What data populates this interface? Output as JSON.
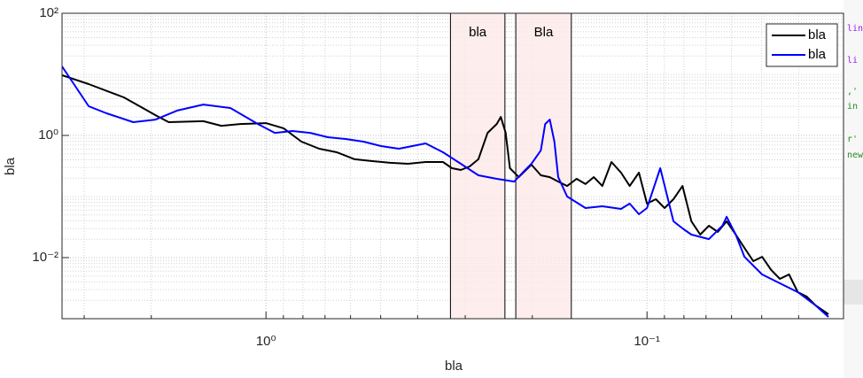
{
  "chart_data": {
    "type": "line",
    "xlabel": "bla",
    "ylabel": "bla",
    "xscale": "log",
    "yscale": "log",
    "grid": true,
    "legend": "upper right",
    "xlim": [
      3.43,
      0.0305
    ],
    "ylim": [
      0.001,
      100
    ],
    "xticks": [
      {
        "value": 1,
        "label": "10⁰"
      },
      {
        "value": 0.1,
        "label": "10⁻¹"
      }
    ],
    "yticks": [
      {
        "value": 0.01,
        "label": "10⁻²"
      },
      {
        "value": 1,
        "label": "10⁰"
      },
      {
        "value": 100,
        "label": "10²"
      }
    ],
    "xminorticks": [
      3,
      2,
      0.9,
      0.8,
      0.7,
      0.6,
      0.5,
      0.4,
      0.3,
      0.2,
      0.09,
      0.08,
      0.07,
      0.06,
      0.05,
      0.04
    ],
    "yminorticks": [
      0.002,
      0.003,
      0.004,
      0.005,
      0.006,
      0.007,
      0.008,
      0.009,
      0.02,
      0.03,
      0.04,
      0.05,
      0.06,
      0.07,
      0.08,
      0.09,
      0.1,
      0.2,
      0.3,
      0.4,
      0.5,
      0.6,
      0.7,
      0.8,
      0.9,
      2,
      3,
      4,
      5,
      6,
      7,
      8,
      9,
      10,
      20,
      30,
      40,
      50,
      60,
      70,
      80,
      90
    ],
    "regions": [
      {
        "label": "bla",
        "x": [
          0.328,
          0.236
        ],
        "color": "#fde9e9"
      },
      {
        "label": "Bla",
        "x": [
          0.221,
          0.158
        ],
        "color": "#fde9e9"
      }
    ],
    "series": [
      {
        "name": "bla",
        "color": "#000000",
        "x": [
          3.43,
          2.92,
          2.36,
          1.95,
          1.8,
          1.46,
          1.31,
          1.17,
          1,
          0.899,
          0.807,
          0.725,
          0.652,
          0.585,
          0.526,
          0.472,
          0.424,
          0.381,
          0.343,
          0.325,
          0.308,
          0.292,
          0.277,
          0.262,
          0.248,
          0.242,
          0.235,
          0.229,
          0.217,
          0.201,
          0.19,
          0.18,
          0.171,
          0.162,
          0.153,
          0.145,
          0.138,
          0.131,
          0.124,
          0.117,
          0.111,
          0.105,
          0.1,
          0.0948,
          0.0899,
          0.0852,
          0.0807,
          0.0765,
          0.0725,
          0.0688,
          0.0652,
          0.0618,
          0.0585,
          0.0555,
          0.0526,
          0.0499,
          0.0472,
          0.0448,
          0.0424,
          0.0402,
          0.0381,
          0.0361,
          0.0334
        ],
        "values": [
          9.68,
          6.93,
          4.2,
          2.15,
          1.65,
          1.71,
          1.44,
          1.54,
          1.59,
          1.31,
          0.792,
          0.607,
          0.531,
          0.407,
          0.38,
          0.356,
          0.344,
          0.367,
          0.367,
          0.291,
          0.272,
          0.311,
          0.407,
          1.1,
          1.54,
          2.01,
          1.1,
          0.291,
          0.208,
          0.332,
          0.223,
          0.208,
          0.176,
          0.149,
          0.195,
          0.16,
          0.208,
          0.149,
          0.367,
          0.246,
          0.149,
          0.246,
          0.0766,
          0.0905,
          0.0649,
          0.0905,
          0.149,
          0.0393,
          0.0238,
          0.0333,
          0.0263,
          0.0393,
          0.0238,
          0.0144,
          0.00875,
          0.0103,
          0.00626,
          0.00449,
          0.00531,
          0.00272,
          0.0023,
          0.00165,
          0.00118
        ]
      },
      {
        "name": "bla",
        "color": "#0000ff",
        "x": [
          3.43,
          2.92,
          2.62,
          2.23,
          1.95,
          1.71,
          1.46,
          1.24,
          1.05,
          0.948,
          0.852,
          0.765,
          0.688,
          0.618,
          0.555,
          0.499,
          0.448,
          0.381,
          0.343,
          0.308,
          0.277,
          0.248,
          0.223,
          0.212,
          0.201,
          0.19,
          0.185,
          0.18,
          0.175,
          0.171,
          0.162,
          0.145,
          0.131,
          0.117,
          0.111,
          0.105,
          0.1,
          0.0923,
          0.0852,
          0.0807,
          0.0765,
          0.0688,
          0.0634,
          0.0618,
          0.0585,
          0.0555,
          0.0499,
          0.0448,
          0.0402,
          0.0361,
          0.0334
        ],
        "values": [
          13.5,
          3.01,
          2.3,
          1.65,
          1.82,
          2.55,
          3.21,
          2.81,
          1.54,
          1.1,
          1.18,
          1.1,
          0.935,
          0.875,
          0.792,
          0.67,
          0.607,
          0.741,
          0.531,
          0.344,
          0.223,
          0.195,
          0.176,
          0.246,
          0.344,
          0.568,
          1.54,
          1.82,
          0.792,
          0.208,
          0.1,
          0.0649,
          0.0693,
          0.0627,
          0.0766,
          0.0513,
          0.0649,
          0.291,
          0.0393,
          0.0301,
          0.0238,
          0.0201,
          0.0333,
          0.0465,
          0.0238,
          0.0103,
          0.00531,
          0.0038,
          0.00272,
          0.00165,
          0.00107
        ]
      }
    ]
  },
  "editor_fragments": [
    "lin",
    "li",
    ",'",
    "in",
    "r'",
    "new"
  ]
}
